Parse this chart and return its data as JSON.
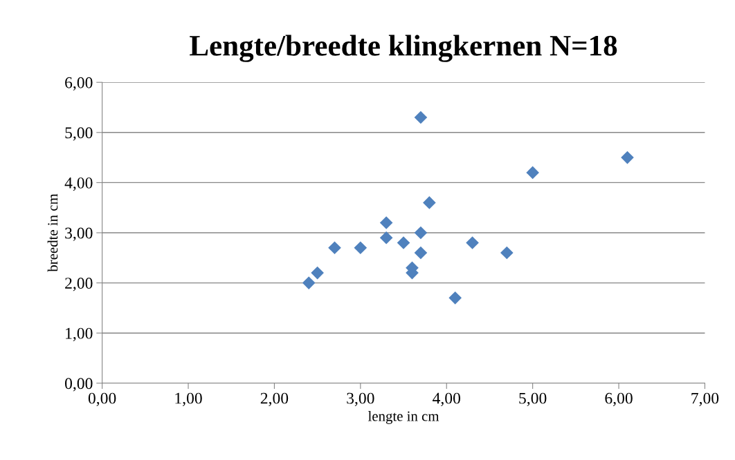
{
  "chart_data": {
    "type": "scatter",
    "title": "Lengte/breedte klingkernen N=18",
    "xlabel": "lengte in cm",
    "ylabel": "breedte in cm",
    "x": [
      2.4,
      2.5,
      2.7,
      3.0,
      3.3,
      3.3,
      3.5,
      3.6,
      3.6,
      3.7,
      3.7,
      3.7,
      3.8,
      4.1,
      4.3,
      4.7,
      5.0,
      6.1
    ],
    "values": [
      2.0,
      2.2,
      2.7,
      2.7,
      3.2,
      2.9,
      2.8,
      2.3,
      2.2,
      5.3,
      3.0,
      2.6,
      3.6,
      1.7,
      2.8,
      2.6,
      4.2,
      4.5
    ],
    "color": "#4f81bd",
    "marker": "diamond",
    "grid": "y",
    "legend": false,
    "xlim": [
      0,
      7
    ],
    "ylim": [
      0,
      6
    ],
    "xticks": [
      {
        "value": 0,
        "label": "0,00"
      },
      {
        "value": 1,
        "label": "1,00"
      },
      {
        "value": 2,
        "label": "2,00"
      },
      {
        "value": 3,
        "label": "3,00"
      },
      {
        "value": 4,
        "label": "4,00"
      },
      {
        "value": 5,
        "label": "5,00"
      },
      {
        "value": 6,
        "label": "6,00"
      },
      {
        "value": 7,
        "label": "7,00"
      }
    ],
    "yticks": [
      {
        "value": 0,
        "label": "0,00"
      },
      {
        "value": 1,
        "label": "1,00"
      },
      {
        "value": 2,
        "label": "2,00"
      },
      {
        "value": 3,
        "label": "3,00"
      },
      {
        "value": 4,
        "label": "4,00"
      },
      {
        "value": 5,
        "label": "5,00"
      },
      {
        "value": 6,
        "label": "6,00"
      }
    ]
  }
}
